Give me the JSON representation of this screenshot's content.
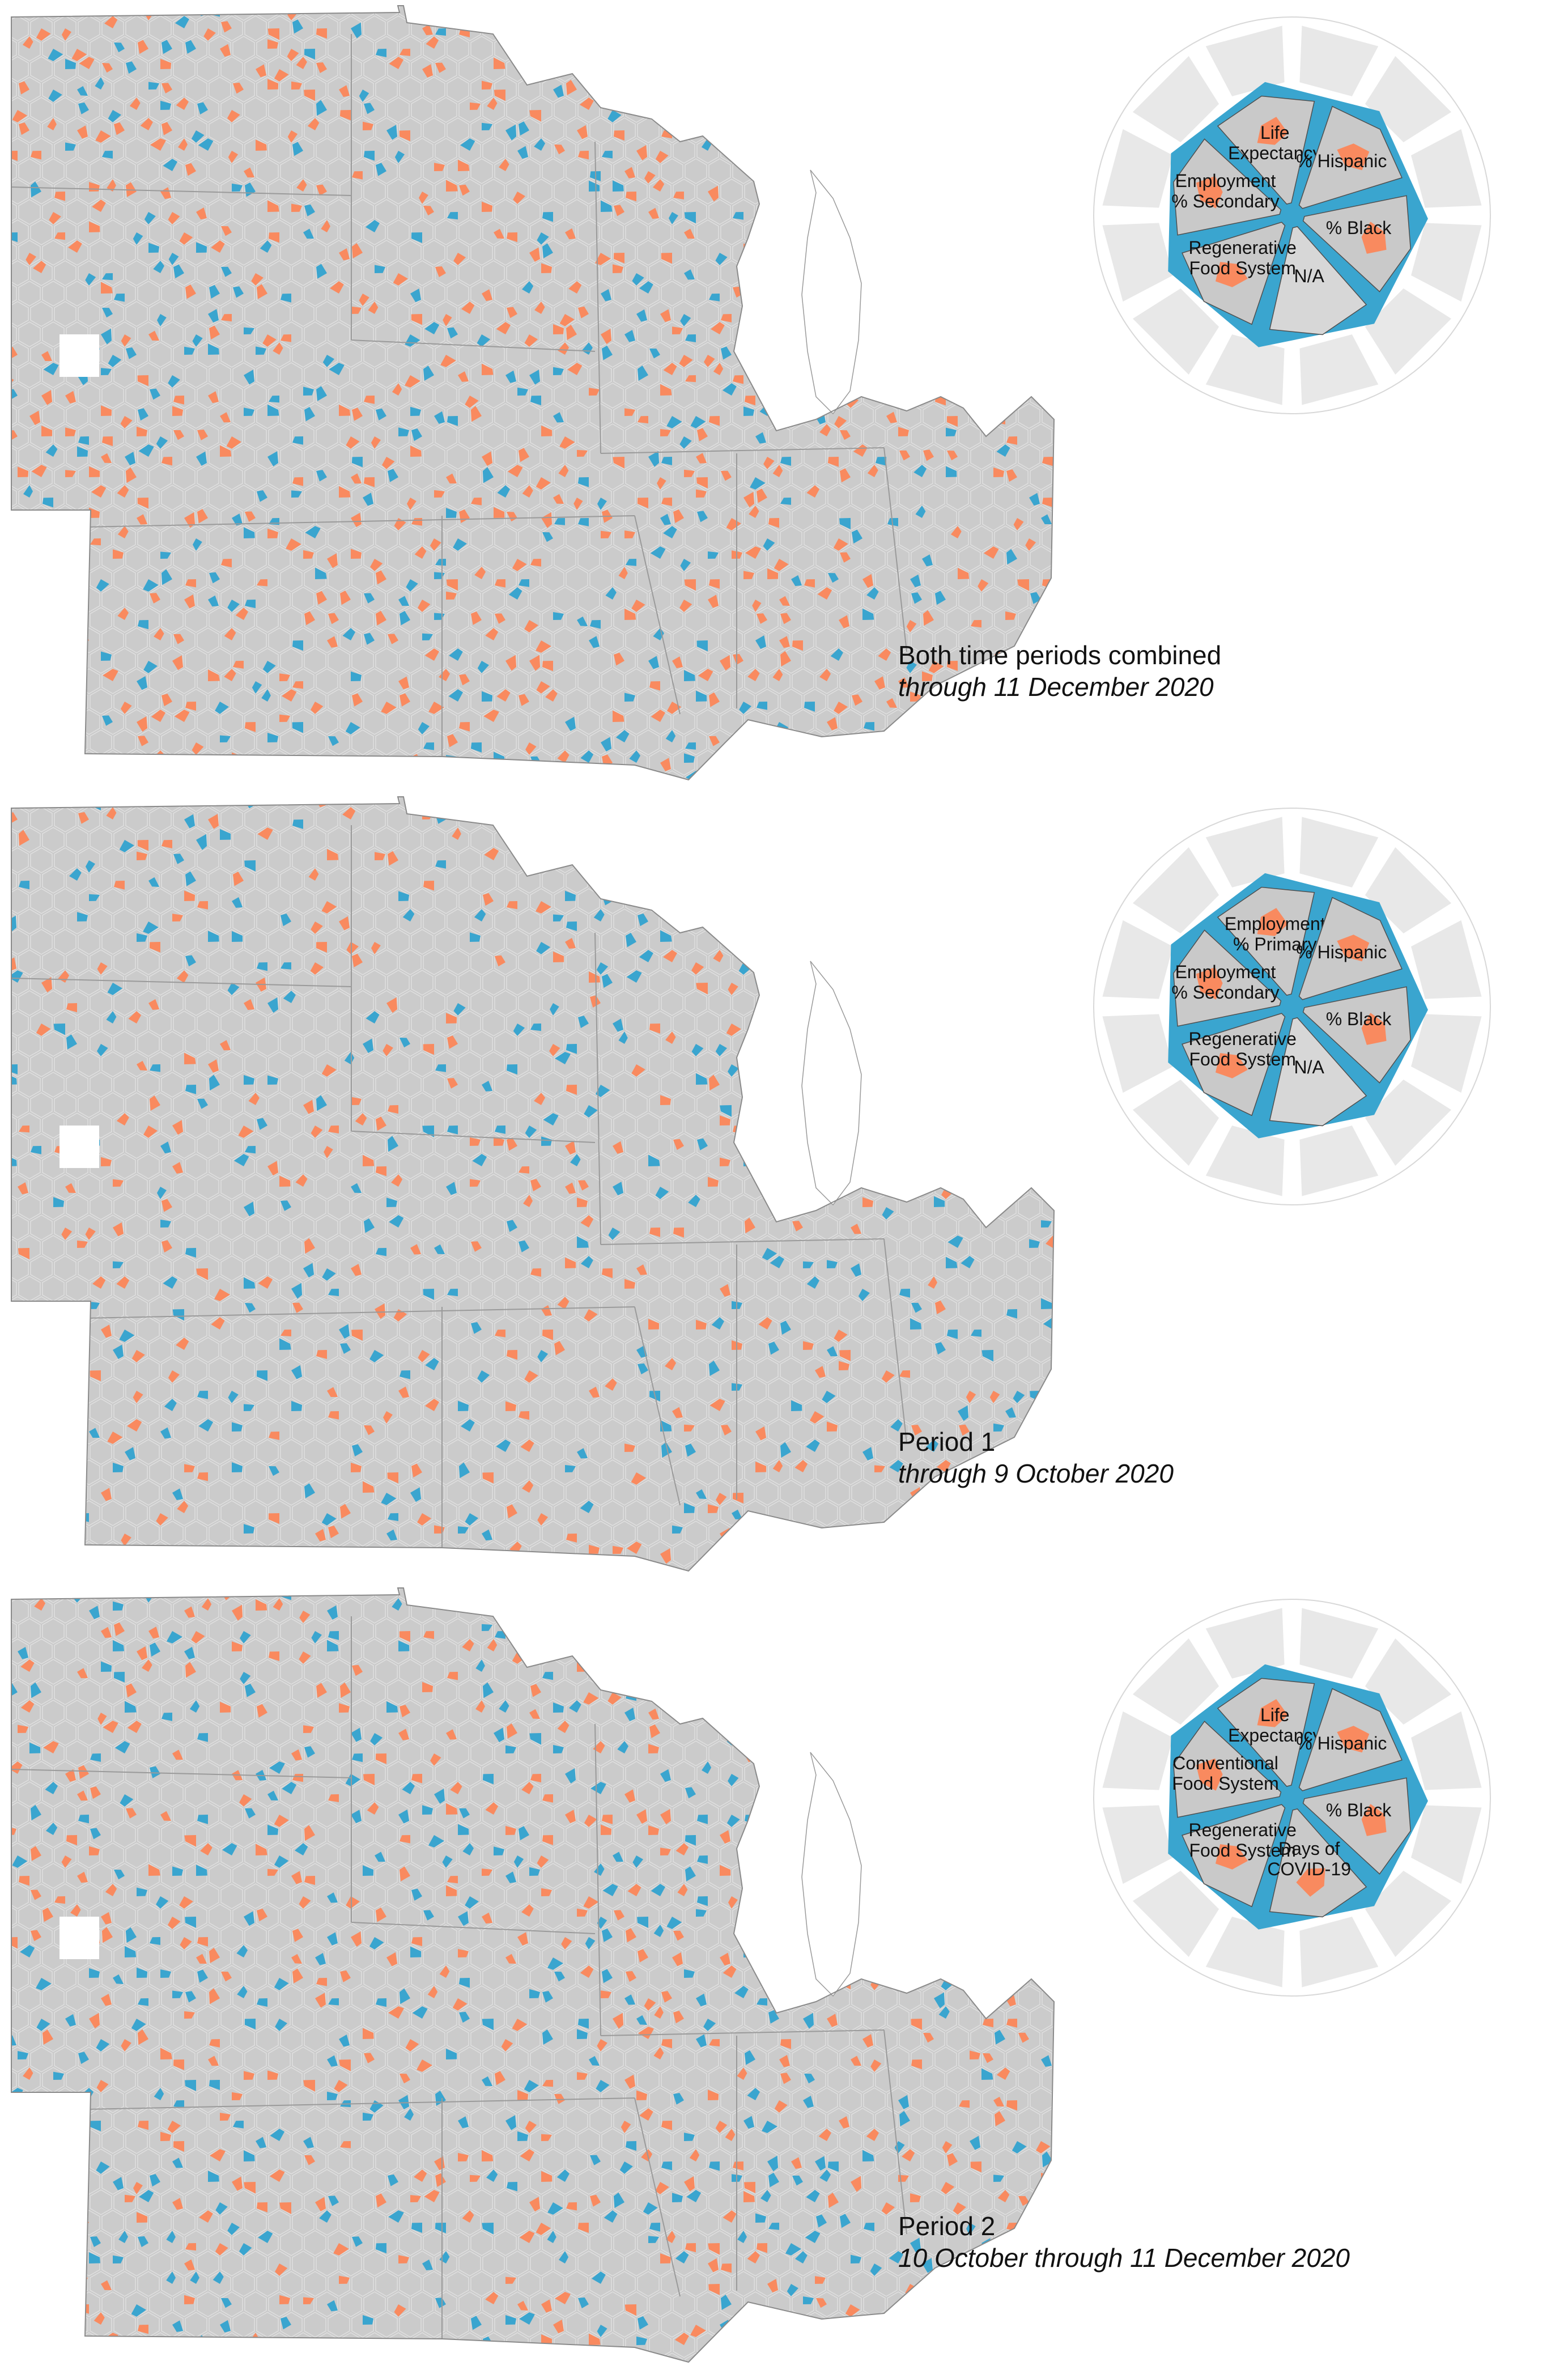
{
  "colors": {
    "orange": "#f98a5f",
    "blue": "#3aa5cf",
    "gray": "#c9c9c9",
    "light_gray": "#e8e8e8",
    "border_gray": "#8a8a8a"
  },
  "panels": [
    {
      "caption_title": "Both time periods combined",
      "caption_subtitle": "through 11 December 2020",
      "map_pattern": {
        "blue_share": 0.22,
        "orange_share": 0.36
      },
      "legend": [
        {
          "label": "Life\nExpectancy",
          "filled": true
        },
        {
          "label": "% Hispanic",
          "filled": true
        },
        {
          "label": "% Black",
          "filled": true
        },
        {
          "label": "N/A",
          "filled": false
        },
        {
          "label": "Regenerative\nFood System",
          "filled": true
        },
        {
          "label": "Employment\n% Secondary",
          "filled": true
        }
      ]
    },
    {
      "caption_title": "Period 1",
      "caption_subtitle": "through 9 October 2020",
      "map_pattern": {
        "blue_share": 0.2,
        "orange_share": 0.2
      },
      "legend": [
        {
          "label": "Employment\n% Primary",
          "filled": true
        },
        {
          "label": "% Hispanic",
          "filled": true
        },
        {
          "label": "% Black",
          "filled": true
        },
        {
          "label": "N/A",
          "filled": false
        },
        {
          "label": "Regenerative\nFood System",
          "filled": true
        },
        {
          "label": "Employment\n% Secondary",
          "filled": true
        }
      ]
    },
    {
      "caption_title": "Period 2",
      "caption_subtitle": "10 October through 11 December 2020",
      "map_pattern": {
        "blue_share": 0.28,
        "orange_share": 0.28
      },
      "legend": [
        {
          "label": "Life\nExpectancy",
          "filled": true
        },
        {
          "label": "% Hispanic",
          "filled": true
        },
        {
          "label": "% Black",
          "filled": true
        },
        {
          "label": "Days of\nCOVID-19",
          "filled": true
        },
        {
          "label": "Regenerative\nFood System",
          "filled": true
        },
        {
          "label": "Conventional\nFood System",
          "filled": true
        }
      ]
    }
  ]
}
